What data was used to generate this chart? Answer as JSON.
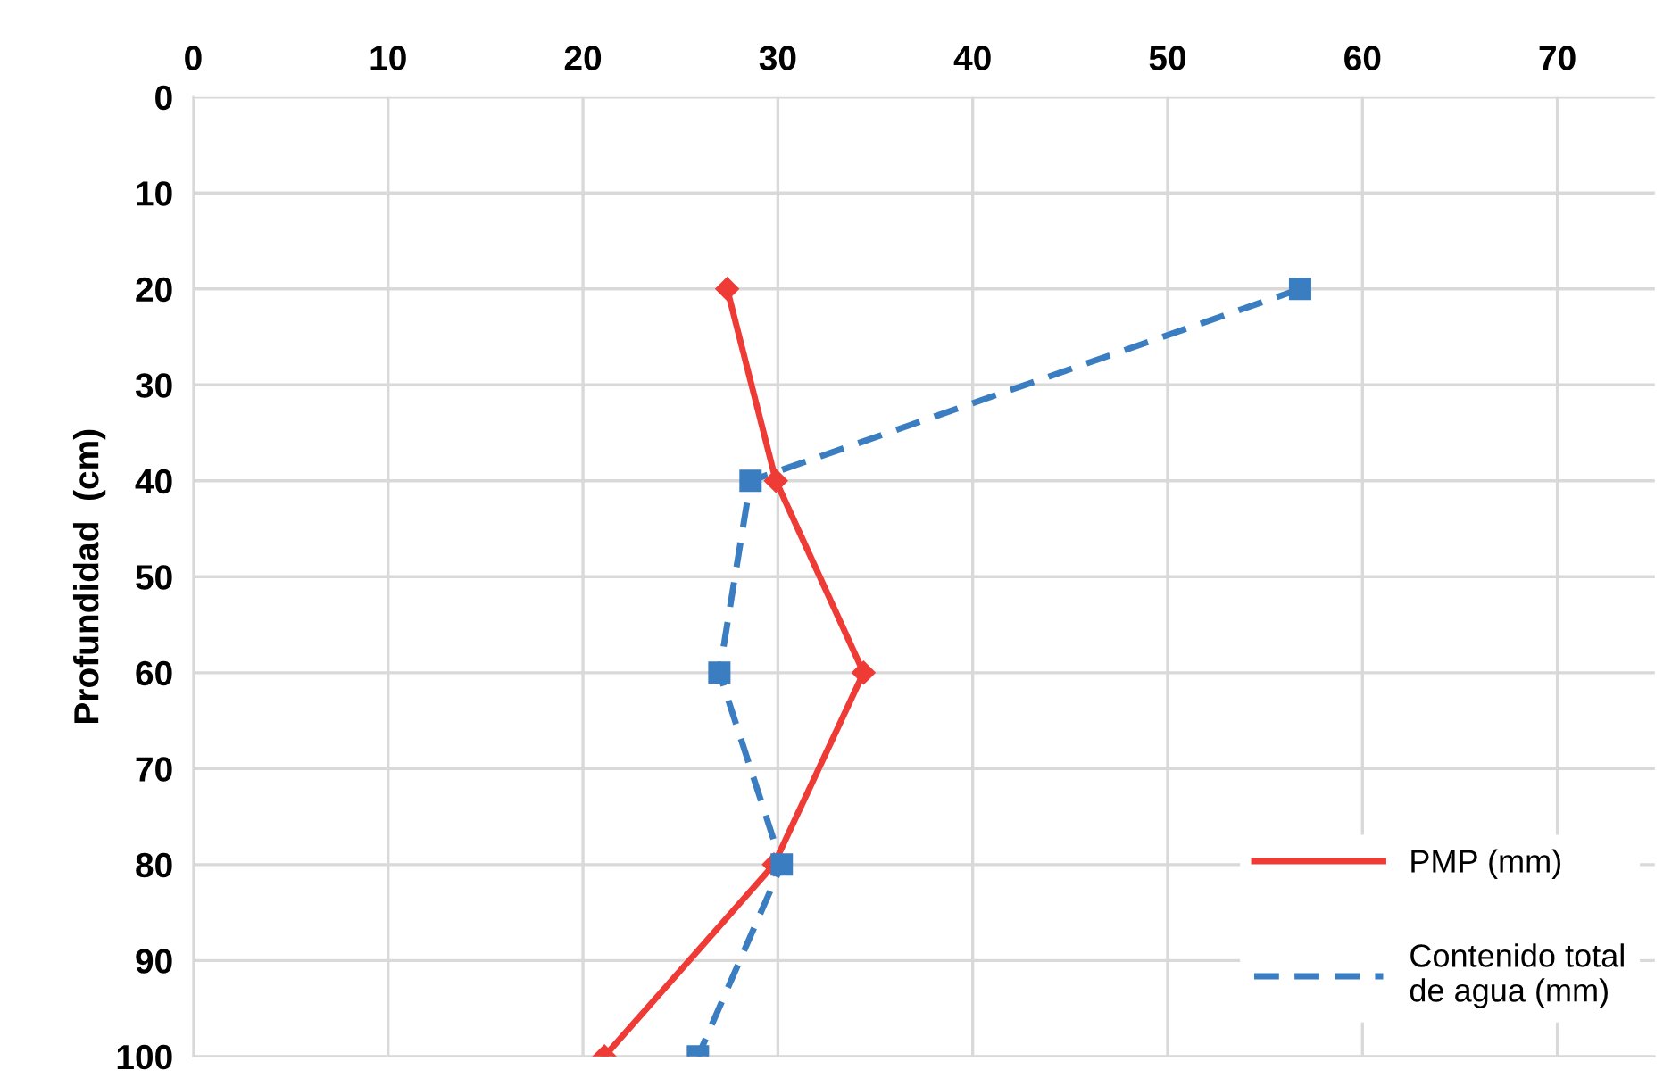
{
  "chart_data": {
    "type": "line",
    "ylabel": "Profundidad  (cm)",
    "xlim": [
      0,
      75
    ],
    "xticks": [
      0,
      10,
      20,
      30,
      40,
      50,
      60,
      70
    ],
    "ylim": [
      100,
      0
    ],
    "yticks": [
      0,
      10,
      20,
      30,
      40,
      50,
      60,
      70,
      80,
      90,
      100
    ],
    "grid": true,
    "legend": "bottom right",
    "series": [
      {
        "name": "PMP (mm)",
        "color": "#ee3b36",
        "marker": "diamond",
        "line_style": "solid",
        "x": [
          27.4,
          29.9,
          34.4,
          29.8,
          21.1
        ],
        "values": [
          20,
          40,
          60,
          80,
          100
        ]
      },
      {
        "name": "Contenido total\nde agua (mm)",
        "color": "#3a7dc0",
        "marker": "square",
        "line_style": "dashed",
        "x": [
          56.8,
          28.6,
          27.0,
          30.2,
          25.9
        ],
        "values": [
          20,
          40,
          60,
          80,
          100
        ]
      }
    ]
  }
}
